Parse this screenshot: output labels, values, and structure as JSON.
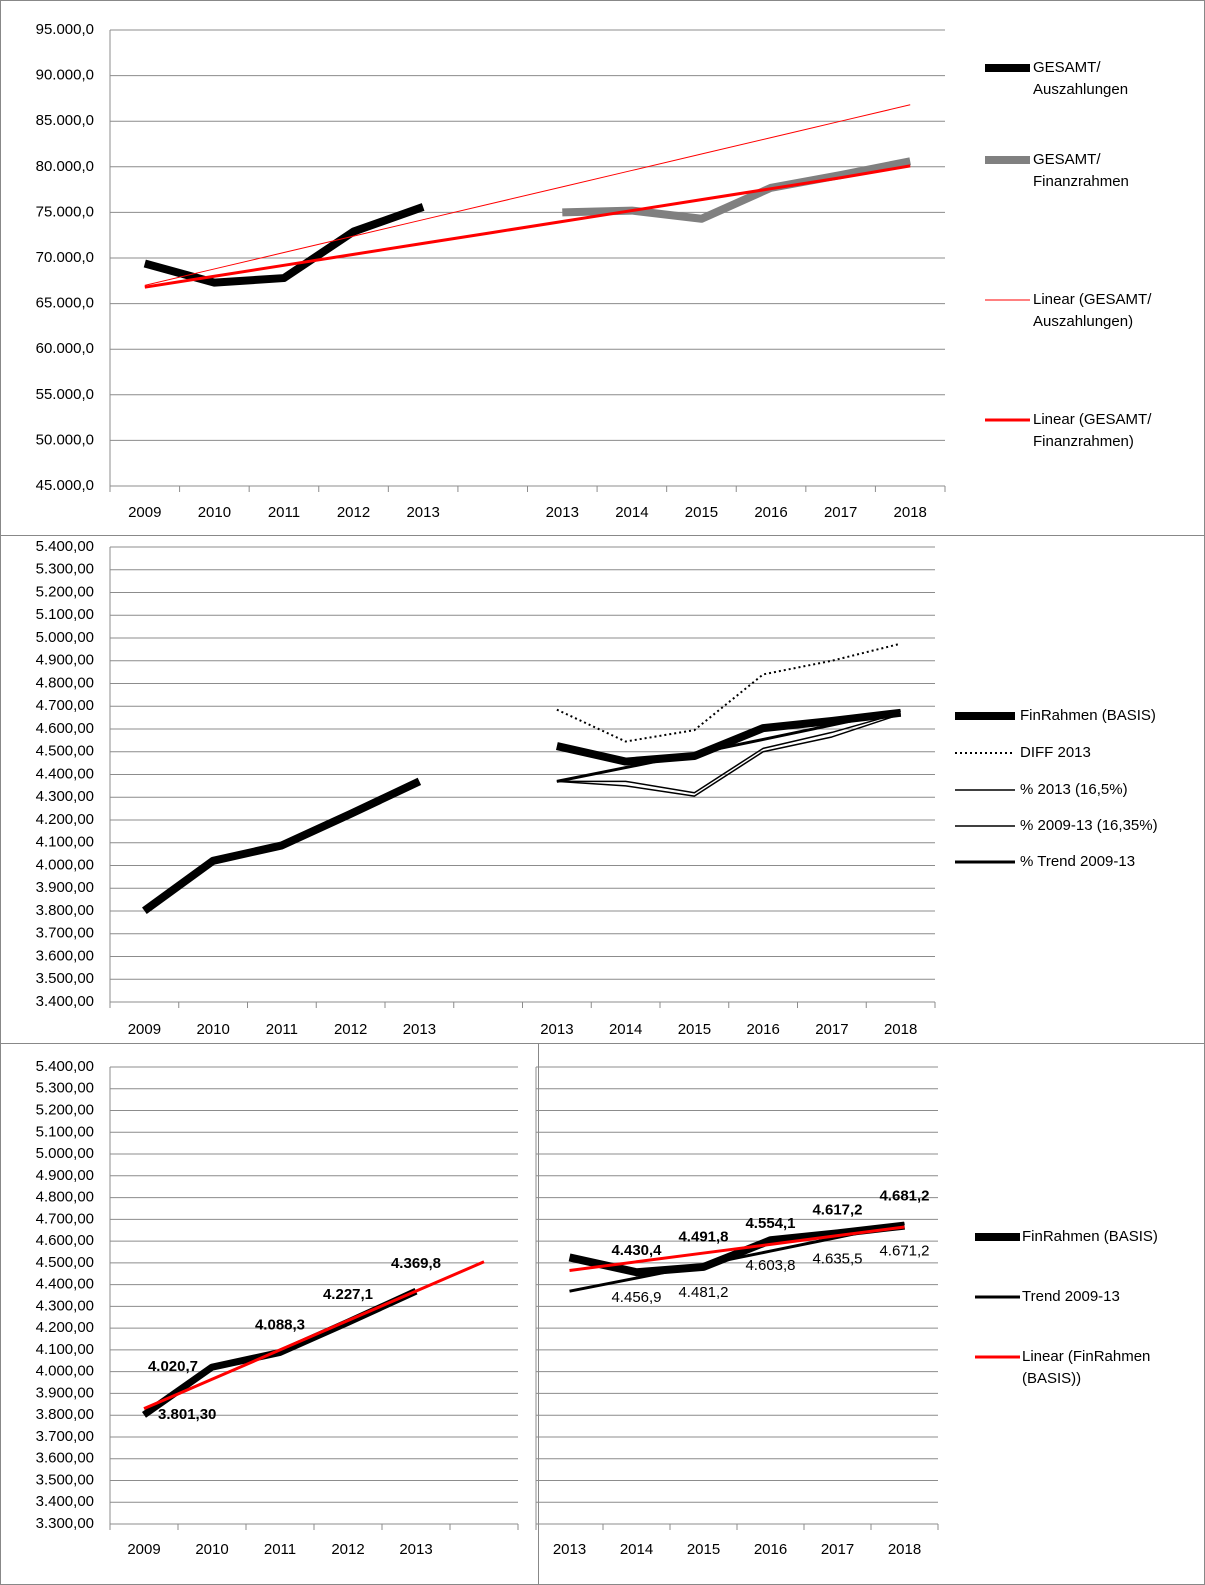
{
  "chart_data": [
    {
      "type": "line",
      "categories": [
        "2009",
        "2010",
        "2011",
        "2012",
        "2013",
        null,
        "2013",
        "2014",
        "2015",
        "2016",
        "2017",
        "2018"
      ],
      "ylim": [
        45000,
        95000
      ],
      "yticks": [
        {
          "value": 45000,
          "label": "45.000,0"
        },
        {
          "value": 50000,
          "label": "50.000,0"
        },
        {
          "value": 55000,
          "label": "55.000,0"
        },
        {
          "value": 60000,
          "label": "60.000,0"
        },
        {
          "value": 65000,
          "label": "65.000,0"
        },
        {
          "value": 70000,
          "label": "70.000,0"
        },
        {
          "value": 75000,
          "label": "75.000,0"
        },
        {
          "value": 80000,
          "label": "80.000,0"
        },
        {
          "value": 85000,
          "label": "85.000,0"
        },
        {
          "value": 90000,
          "label": "90.000,0"
        },
        {
          "value": 95000,
          "label": "95.000,0"
        }
      ],
      "grid": true,
      "series": [
        {
          "name": "GESAMT/ Auszahlungen",
          "color": "#000000",
          "values": [
            69400,
            67300,
            67800,
            72900,
            75600,
            null,
            null,
            null,
            null,
            null,
            null,
            null
          ]
        },
        {
          "name": "GESAMT/ Finanzrahmen",
          "color": "#808080",
          "values": [
            null,
            null,
            null,
            null,
            null,
            null,
            75000,
            75200,
            74300,
            77700,
            79100,
            80600
          ]
        },
        {
          "name": "Linear (GESAMT/ Auszahlungen)",
          "color": "#ff0000",
          "values": [
            67000,
            68800,
            70600,
            72400,
            74200,
            76000,
            77800,
            79600,
            81400,
            83200,
            85000,
            86800
          ]
        },
        {
          "name": "Linear (GESAMT/ Finanzrahmen)",
          "color": "#ff0000",
          "values": [
            66800,
            68000,
            69200,
            70400,
            71600,
            72800,
            74000,
            75200,
            76400,
            77600,
            78800,
            80100
          ]
        }
      ]
    },
    {
      "type": "line",
      "categories": [
        "2009",
        "2010",
        "2011",
        "2012",
        "2013",
        null,
        "2013",
        "2014",
        "2015",
        "2016",
        "2017",
        "2018"
      ],
      "ylim": [
        3400,
        5400
      ],
      "yticks": [
        {
          "value": 3400,
          "label": "3.400,00"
        },
        {
          "value": 3500,
          "label": "3.500,00"
        },
        {
          "value": 3600,
          "label": "3.600,00"
        },
        {
          "value": 3700,
          "label": "3.700,00"
        },
        {
          "value": 3800,
          "label": "3.800,00"
        },
        {
          "value": 3900,
          "label": "3.900,00"
        },
        {
          "value": 4000,
          "label": "4.000,00"
        },
        {
          "value": 4100,
          "label": "4.100,00"
        },
        {
          "value": 4200,
          "label": "4.200,00"
        },
        {
          "value": 4300,
          "label": "4.300,00"
        },
        {
          "value": 4400,
          "label": "4.400,00"
        },
        {
          "value": 4500,
          "label": "4.500,00"
        },
        {
          "value": 4600,
          "label": "4.600,00"
        },
        {
          "value": 4700,
          "label": "4.700,00"
        },
        {
          "value": 4800,
          "label": "4.800,00"
        },
        {
          "value": 4900,
          "label": "4.900,00"
        },
        {
          "value": 5000,
          "label": "5.000,00"
        },
        {
          "value": 5100,
          "label": "5.100,00"
        },
        {
          "value": 5200,
          "label": "5.200,00"
        },
        {
          "value": 5300,
          "label": "5.300,00"
        },
        {
          "value": 5400,
          "label": "5.400,00"
        }
      ],
      "grid": true,
      "series": [
        {
          "name": "FinRahmen (BASIS)",
          "color": "#000000",
          "values": [
            3801.3,
            4020.7,
            4088.3,
            4227.1,
            4369.8,
            null,
            4525,
            4456.9,
            4481.2,
            4603.8,
            4635.5,
            4671.2
          ]
        },
        {
          "name": "DIFF 2013",
          "color": "#000000",
          "values": [
            null,
            null,
            null,
            null,
            null,
            null,
            4685,
            4545,
            4595,
            4840,
            4900,
            4975
          ]
        },
        {
          "name": "% 2013 (16,5%)",
          "color": "#000000",
          "values": [
            null,
            null,
            null,
            null,
            null,
            null,
            4370,
            4370,
            4320,
            4515,
            4585,
            4671
          ]
        },
        {
          "name": "% 2009-13 (16,35%)",
          "color": "#000000",
          "values": [
            null,
            null,
            null,
            null,
            null,
            null,
            4370,
            4350,
            4305,
            4500,
            4565,
            4665
          ]
        },
        {
          "name": "% Trend 2009-13",
          "color": "#000000",
          "values": [
            null,
            null,
            null,
            null,
            null,
            null,
            4369.8,
            4430.4,
            4491.8,
            4554.1,
            4617.2,
            4681.2
          ]
        }
      ]
    },
    {
      "type": "line",
      "categories": [
        "2009",
        "2010",
        "2011",
        "2012",
        "2013",
        null
      ],
      "ylim": [
        3300,
        5400
      ],
      "yticks": [
        {
          "value": 3300,
          "label": "3.300,00"
        },
        {
          "value": 3400,
          "label": "3.400,00"
        },
        {
          "value": 3500,
          "label": "3.500,00"
        },
        {
          "value": 3600,
          "label": "3.600,00"
        },
        {
          "value": 3700,
          "label": "3.700,00"
        },
        {
          "value": 3800,
          "label": "3.800,00"
        },
        {
          "value": 3900,
          "label": "3.900,00"
        },
        {
          "value": 4000,
          "label": "4.000,00"
        },
        {
          "value": 4100,
          "label": "4.100,00"
        },
        {
          "value": 4200,
          "label": "4.200,00"
        },
        {
          "value": 4300,
          "label": "4.300,00"
        },
        {
          "value": 4400,
          "label": "4.400,00"
        },
        {
          "value": 4500,
          "label": "4.500,00"
        },
        {
          "value": 4600,
          "label": "4.600,00"
        },
        {
          "value": 4700,
          "label": "4.700,00"
        },
        {
          "value": 4800,
          "label": "4.800,00"
        },
        {
          "value": 4900,
          "label": "4.900,00"
        },
        {
          "value": 5000,
          "label": "5.000,00"
        },
        {
          "value": 5100,
          "label": "5.100,00"
        },
        {
          "value": 5200,
          "label": "5.200,00"
        },
        {
          "value": 5300,
          "label": "5.300,00"
        },
        {
          "value": 5400,
          "label": "5.400,00"
        }
      ],
      "grid": true,
      "series": [
        {
          "color": "#000000",
          "values": [
            3801.3,
            4020.7,
            4088.3,
            4227.1,
            4369.8,
            null
          ],
          "value_labels": [
            "3.801,30",
            "4.020,7",
            "4.088,3",
            "4.227,1",
            "4.369,8",
            null
          ]
        },
        {
          "color": "#ff0000",
          "values": [
            3830,
            3965,
            4100,
            4235,
            4370,
            4505
          ]
        }
      ]
    },
    {
      "type": "line",
      "categories": [
        "2013",
        "2014",
        "2015",
        "2016",
        "2017",
        "2018"
      ],
      "ylim": [
        3300,
        5400
      ],
      "yticks": [
        3300,
        3400,
        3500,
        3600,
        3700,
        3800,
        3900,
        4000,
        4100,
        4200,
        4300,
        4400,
        4500,
        4600,
        4700,
        4800,
        4900,
        5000,
        5100,
        5200,
        5300,
        5400
      ],
      "grid": true,
      "series": [
        {
          "name": "FinRahmen (BASIS)",
          "color": "#000000",
          "values": [
            4525,
            4456.9,
            4481.2,
            4603.8,
            4635.5,
            4671.2
          ],
          "value_labels": [
            null,
            "4.456,9",
            "4.481,2",
            "4.603,8",
            "4.635,5",
            "4.671,2"
          ]
        },
        {
          "name": "Trend 2009-13",
          "color": "#000000",
          "values": [
            4369.8,
            4430.4,
            4491.8,
            4554.1,
            4617.2,
            4681.2
          ],
          "value_labels": [
            null,
            "4.430,4",
            "4.491,8",
            "4.554,1",
            "4.617,2",
            "4.681,2"
          ]
        },
        {
          "name": "Linear (FinRahmen (BASIS))",
          "color": "#ff0000",
          "values": [
            4465,
            4505,
            4545,
            4585,
            4625,
            4665
          ]
        }
      ]
    }
  ]
}
